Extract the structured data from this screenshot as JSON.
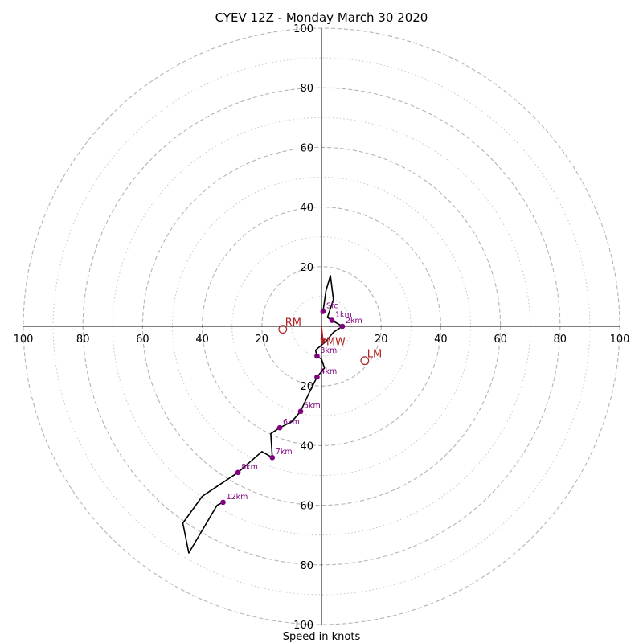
{
  "chart_data": {
    "type": "hodograph",
    "title": "CYEV 12Z - Monday March 30 2020",
    "xlabel": "Speed in knots",
    "max_speed": 100,
    "rings_major": [
      20,
      40,
      60,
      80,
      100
    ],
    "rings_minor": [
      10,
      30,
      50,
      70,
      90
    ],
    "tick_labels": {
      "left": [
        "100",
        "80",
        "60",
        "40",
        "20"
      ],
      "right": [
        "20",
        "40",
        "60",
        "80",
        "100"
      ],
      "top": [
        "20",
        "40",
        "60",
        "80",
        "100"
      ],
      "bottom": [
        "20",
        "40",
        "60",
        "80",
        "100"
      ]
    },
    "trace": {
      "color": "#000000",
      "points": [
        {
          "u": 0.5,
          "v": 5
        },
        {
          "u": 1.5,
          "v": 12
        },
        {
          "u": 3,
          "v": 17
        },
        {
          "u": 4,
          "v": 9
        },
        {
          "u": 2,
          "v": 3
        },
        {
          "u": 3.5,
          "v": 2
        },
        {
          "u": 7,
          "v": 0
        },
        {
          "u": 4,
          "v": -2
        },
        {
          "u": 1.5,
          "v": -5
        },
        {
          "u": -2,
          "v": -8
        },
        {
          "u": -1.5,
          "v": -10
        },
        {
          "u": 0,
          "v": -11
        },
        {
          "u": 1,
          "v": -14
        },
        {
          "u": -1.5,
          "v": -17
        },
        {
          "u": -4,
          "v": -22
        },
        {
          "u": -7,
          "v": -28.5
        },
        {
          "u": -10,
          "v": -32
        },
        {
          "u": -14,
          "v": -34
        },
        {
          "u": -17,
          "v": -36
        },
        {
          "u": -16.5,
          "v": -44
        },
        {
          "u": -20,
          "v": -42
        },
        {
          "u": -28,
          "v": -49
        },
        {
          "u": -40,
          "v": -57
        },
        {
          "u": -46.5,
          "v": -66
        },
        {
          "u": -44.5,
          "v": -76
        },
        {
          "u": -35,
          "v": -60
        },
        {
          "u": -33,
          "v": -59
        }
      ]
    },
    "height_markers": {
      "color": "#800080",
      "points": [
        {
          "label": "Sfc",
          "u": 0.5,
          "v": 5
        },
        {
          "label": "1km",
          "u": 3.5,
          "v": 2
        },
        {
          "label": "2km",
          "u": 7,
          "v": 0
        },
        {
          "label": "3km",
          "u": -1.5,
          "v": -10
        },
        {
          "label": "4km",
          "u": -1.5,
          "v": -17
        },
        {
          "label": "5km",
          "u": -7,
          "v": -28.5
        },
        {
          "label": "6km",
          "u": -14,
          "v": -34
        },
        {
          "label": "7km",
          "u": -16.5,
          "v": -44
        },
        {
          "label": "8km",
          "u": -28,
          "v": -49
        },
        {
          "label": "12km",
          "u": -33,
          "v": -59
        }
      ]
    },
    "storm_motion": {
      "color": "#b22222",
      "RM": {
        "label": "RM",
        "u": -13,
        "v": -1
      },
      "LM": {
        "label": "LM",
        "u": 14.5,
        "v": -11.5
      },
      "MW": {
        "label": "MW",
        "u": 0.5,
        "v": -6
      }
    },
    "grid": true
  }
}
